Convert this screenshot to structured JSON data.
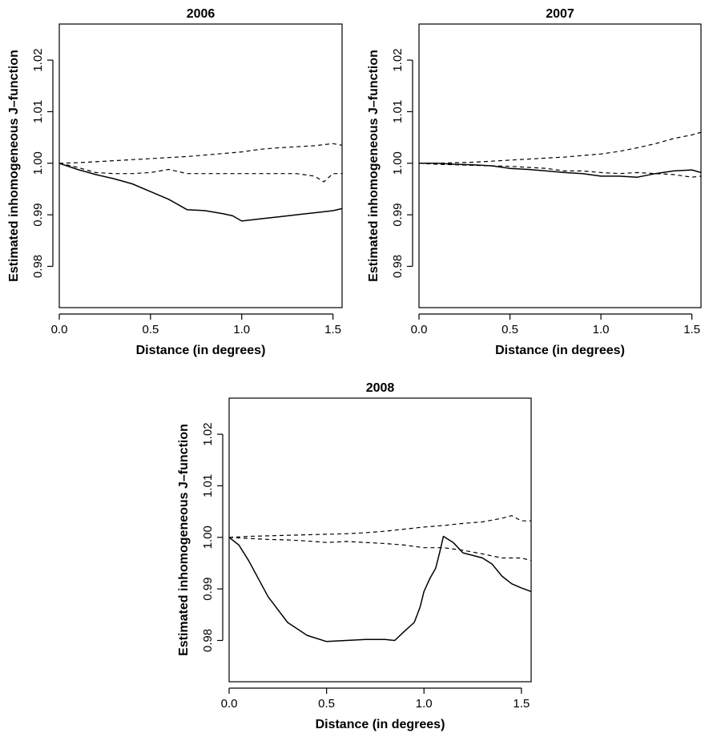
{
  "chart_data": [
    {
      "type": "line",
      "title": "2006",
      "xlabel": "Distance (in degrees)",
      "ylabel": "Estimated inhomogeneous J–function",
      "xlim": [
        0,
        1.55
      ],
      "ylim": [
        0.972,
        1.027
      ],
      "xticks": [
        0.0,
        0.5,
        1.0,
        1.5
      ],
      "xtick_labels": [
        "0.0",
        "0.5",
        "1.0",
        "1.5"
      ],
      "yticks": [
        0.98,
        0.99,
        1.0,
        1.01,
        1.02
      ],
      "ytick_labels": [
        "0.98",
        "0.99",
        "1.00",
        "1.01",
        "1.02"
      ],
      "grid": false,
      "series": [
        {
          "style": "solid",
          "x": [
            0,
            0.1,
            0.2,
            0.3,
            0.4,
            0.5,
            0.6,
            0.7,
            0.8,
            0.9,
            0.95,
            1.0,
            1.1,
            1.2,
            1.3,
            1.4,
            1.5,
            1.55
          ],
          "y": [
            1.0,
            0.9988,
            0.9978,
            0.997,
            0.996,
            0.9945,
            0.993,
            0.991,
            0.9908,
            0.9902,
            0.9898,
            0.9888,
            0.9892,
            0.9896,
            0.99,
            0.9904,
            0.9908,
            0.9912
          ]
        },
        {
          "style": "dashed",
          "x": [
            0,
            0.1,
            0.2,
            0.3,
            0.4,
            0.5,
            0.6,
            0.7,
            0.8,
            0.9,
            1.0,
            1.1,
            1.2,
            1.3,
            1.4,
            1.5,
            1.55
          ],
          "y": [
            1.0,
            1.0001,
            1.0003,
            1.0005,
            1.0007,
            1.0009,
            1.0011,
            1.0013,
            1.0016,
            1.0019,
            1.0022,
            1.0027,
            1.003,
            1.0032,
            1.0034,
            1.0038,
            1.0035
          ]
        },
        {
          "style": "dashed",
          "x": [
            0,
            0.1,
            0.2,
            0.3,
            0.4,
            0.5,
            0.6,
            0.7,
            0.8,
            0.9,
            1.0,
            1.1,
            1.2,
            1.3,
            1.4,
            1.45,
            1.5,
            1.55
          ],
          "y": [
            1.0,
            0.9992,
            0.9982,
            0.998,
            0.998,
            0.9982,
            0.9988,
            0.998,
            0.998,
            0.998,
            0.998,
            0.998,
            0.998,
            0.998,
            0.9975,
            0.9964,
            0.998,
            0.998
          ]
        }
      ]
    },
    {
      "type": "line",
      "title": "2007",
      "xlabel": "Distance (in degrees)",
      "ylabel": "Estimated inhomogeneous J–function",
      "xlim": [
        0,
        1.55
      ],
      "ylim": [
        0.972,
        1.027
      ],
      "xticks": [
        0.0,
        0.5,
        1.0,
        1.5
      ],
      "xtick_labels": [
        "0.0",
        "0.5",
        "1.0",
        "1.5"
      ],
      "yticks": [
        0.98,
        0.99,
        1.0,
        1.01,
        1.02
      ],
      "ytick_labels": [
        "0.98",
        "0.99",
        "1.00",
        "1.01",
        "1.02"
      ],
      "grid": false,
      "series": [
        {
          "style": "solid",
          "x": [
            0,
            0.1,
            0.2,
            0.3,
            0.4,
            0.5,
            0.6,
            0.7,
            0.8,
            0.9,
            1.0,
            1.1,
            1.2,
            1.3,
            1.4,
            1.5,
            1.55
          ],
          "y": [
            1.0,
            1.0,
            0.9998,
            0.9997,
            0.9995,
            0.999,
            0.9988,
            0.9985,
            0.9982,
            0.998,
            0.9975,
            0.9975,
            0.9973,
            0.998,
            0.9985,
            0.9987,
            0.9982
          ]
        },
        {
          "style": "dashed",
          "x": [
            0,
            0.1,
            0.2,
            0.3,
            0.4,
            0.5,
            0.6,
            0.7,
            0.8,
            0.9,
            1.0,
            1.1,
            1.2,
            1.3,
            1.4,
            1.5,
            1.55
          ],
          "y": [
            1.0,
            1.0,
            1.0001,
            1.0002,
            1.0004,
            1.0006,
            1.0008,
            1.001,
            1.0012,
            1.0015,
            1.0018,
            1.0023,
            1.003,
            1.0038,
            1.0048,
            1.0055,
            1.006
          ]
        },
        {
          "style": "dashed",
          "x": [
            0,
            0.1,
            0.2,
            0.3,
            0.4,
            0.5,
            0.6,
            0.7,
            0.8,
            0.9,
            1.0,
            1.1,
            1.2,
            1.3,
            1.4,
            1.5,
            1.55
          ],
          "y": [
            1.0,
            0.9998,
            0.9997,
            0.9996,
            0.9995,
            0.9994,
            0.9992,
            0.999,
            0.9985,
            0.9985,
            0.9982,
            0.998,
            0.9982,
            0.998,
            0.9978,
            0.9973,
            0.9975
          ]
        }
      ]
    },
    {
      "type": "line",
      "title": "2008",
      "xlabel": "Distance (in degrees)",
      "ylabel": "Estimated inhomogeneous J–function",
      "xlim": [
        0,
        1.55
      ],
      "ylim": [
        0.972,
        1.027
      ],
      "xticks": [
        0.0,
        0.5,
        1.0,
        1.5
      ],
      "xtick_labels": [
        "0.0",
        "0.5",
        "1.0",
        "1.5"
      ],
      "yticks": [
        0.98,
        0.99,
        1.0,
        1.01,
        1.02
      ],
      "ytick_labels": [
        "0.98",
        "0.99",
        "1.00",
        "1.01",
        "1.02"
      ],
      "grid": false,
      "series": [
        {
          "style": "solid",
          "x": [
            0,
            0.05,
            0.1,
            0.15,
            0.2,
            0.3,
            0.4,
            0.5,
            0.6,
            0.7,
            0.8,
            0.85,
            0.9,
            0.95,
            0.98,
            1.0,
            1.03,
            1.06,
            1.08,
            1.1,
            1.15,
            1.2,
            1.3,
            1.35,
            1.4,
            1.45,
            1.5,
            1.55
          ],
          "y": [
            1.0,
            0.9985,
            0.9955,
            0.992,
            0.9885,
            0.9835,
            0.981,
            0.9798,
            0.98,
            0.9802,
            0.9802,
            0.98,
            0.9818,
            0.9835,
            0.9865,
            0.9895,
            0.992,
            0.994,
            0.997,
            1.0002,
            0.999,
            0.997,
            0.996,
            0.9948,
            0.9925,
            0.991,
            0.9902,
            0.9895
          ]
        },
        {
          "style": "dashed",
          "x": [
            0,
            0.1,
            0.2,
            0.3,
            0.4,
            0.5,
            0.6,
            0.7,
            0.8,
            0.9,
            1.0,
            1.1,
            1.2,
            1.3,
            1.4,
            1.45,
            1.5,
            1.55
          ],
          "y": [
            1.0,
            1.0002,
            1.0003,
            1.0004,
            1.0005,
            1.0006,
            1.0007,
            1.0009,
            1.0012,
            1.0016,
            1.002,
            1.0023,
            1.0027,
            1.003,
            1.0037,
            1.0042,
            1.0032,
            1.0032
          ]
        },
        {
          "style": "dashed",
          "x": [
            0,
            0.1,
            0.2,
            0.3,
            0.4,
            0.5,
            0.6,
            0.7,
            0.8,
            0.9,
            1.0,
            1.1,
            1.2,
            1.3,
            1.4,
            1.5,
            1.55
          ],
          "y": [
            1.0,
            0.9998,
            0.9996,
            0.9995,
            0.9993,
            0.999,
            0.9992,
            0.999,
            0.9988,
            0.9985,
            0.998,
            0.998,
            0.9975,
            0.9968,
            0.996,
            0.996,
            0.9955
          ]
        }
      ]
    }
  ]
}
